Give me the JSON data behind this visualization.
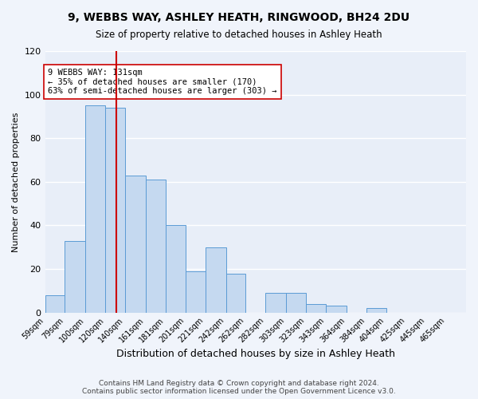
{
  "title": "9, WEBBS WAY, ASHLEY HEATH, RINGWOOD, BH24 2DU",
  "subtitle": "Size of property relative to detached houses in Ashley Heath",
  "xlabel": "Distribution of detached houses by size in Ashley Heath",
  "ylabel": "Number of detached properties",
  "bar_color": "#c5d9f0",
  "bar_edge_color": "#5b9bd5",
  "background_color": "#f0f4fb",
  "ax_background": "#e8eef8",
  "grid_color": "#ffffff",
  "bin_labels": [
    "59sqm",
    "79sqm",
    "100sqm",
    "120sqm",
    "140sqm",
    "161sqm",
    "181sqm",
    "201sqm",
    "221sqm",
    "242sqm",
    "262sqm",
    "282sqm",
    "303sqm",
    "323sqm",
    "343sqm",
    "364sqm",
    "384sqm",
    "404sqm",
    "425sqm",
    "445sqm",
    "465sqm"
  ],
  "bar_heights": [
    8,
    33,
    95,
    94,
    63,
    61,
    40,
    19,
    30,
    18,
    0,
    9,
    9,
    4,
    3,
    0,
    2,
    0,
    0,
    0,
    0
  ],
  "vline_x": 131,
  "vline_color": "#cc0000",
  "annotation_text": "9 WEBBS WAY: 131sqm\n← 35% of detached houses are smaller (170)\n63% of semi-detached houses are larger (303) →",
  "ylim": [
    0,
    120
  ],
  "yticks": [
    0,
    20,
    40,
    60,
    80,
    100,
    120
  ],
  "footer": "Contains HM Land Registry data © Crown copyright and database right 2024.\nContains public sector information licensed under the Open Government Licence v3.0.",
  "bin_edges": [
    59,
    79,
    100,
    120,
    140,
    161,
    181,
    201,
    221,
    242,
    262,
    282,
    303,
    323,
    343,
    364,
    384,
    404,
    425,
    445,
    465,
    485
  ]
}
